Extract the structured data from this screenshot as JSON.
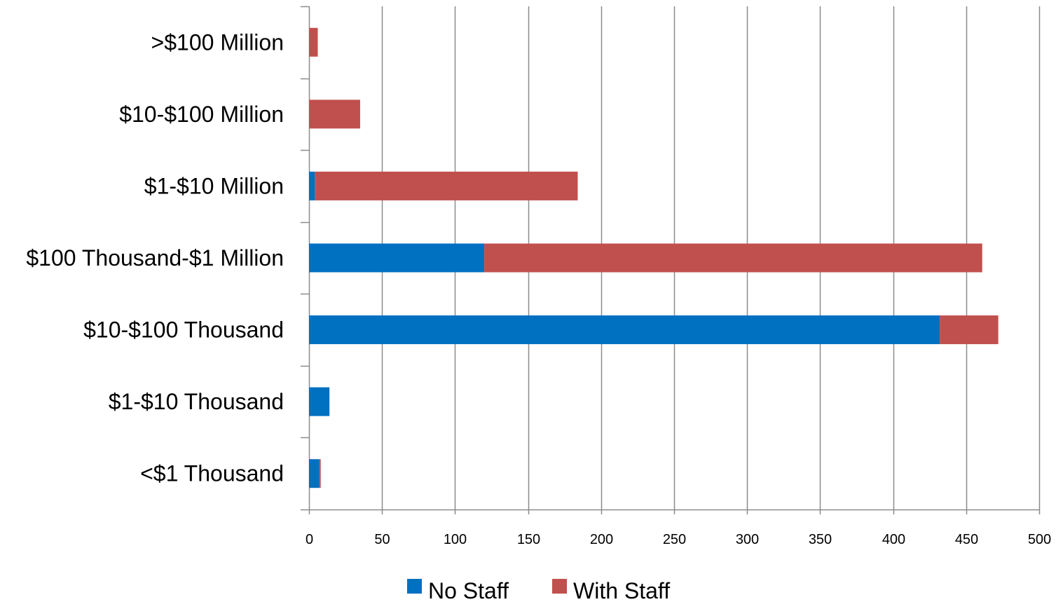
{
  "chart_data": {
    "type": "bar",
    "orientation": "horizontal",
    "stacked": true,
    "title": "",
    "xlabel": "",
    "ylabel": "",
    "categories": [
      ">$100 Million",
      "$10-$100 Million",
      "$1-$10 Million",
      "$100 Thousand-$1 Million",
      "$10-$100 Thousand",
      "$1-$10 Thousand",
      "<$1 Thousand"
    ],
    "series": [
      {
        "name": "No Staff",
        "color": "#0070C0",
        "values": [
          0,
          0,
          4,
          120,
          432,
          14,
          7
        ]
      },
      {
        "name": "With Staff",
        "color": "#C0504D",
        "values": [
          6,
          35,
          180,
          341,
          40,
          0,
          1
        ]
      }
    ],
    "xlim": [
      0,
      500
    ],
    "xticks": [
      0,
      50,
      100,
      150,
      200,
      250,
      300,
      350,
      400,
      450,
      500
    ],
    "grid": "vertical",
    "legend_position": "bottom"
  }
}
